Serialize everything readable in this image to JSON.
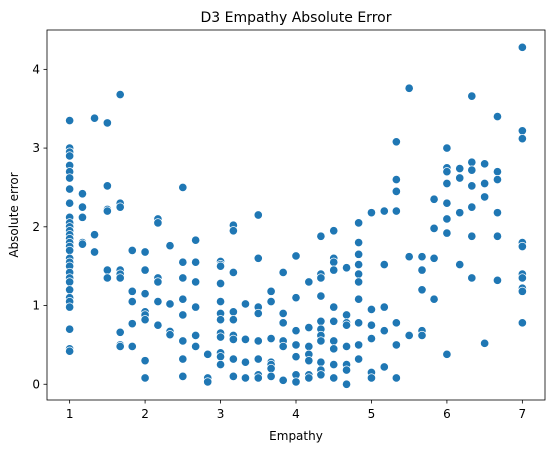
{
  "chart_data": {
    "type": "scatter",
    "title": "D3 Empathy Absolute Error",
    "xlabel": "Empathy",
    "ylabel": "Absolute error",
    "xlim": [
      0.7,
      7.3
    ],
    "ylim": [
      -0.2,
      4.5
    ],
    "xticks": [
      1,
      2,
      3,
      4,
      5,
      6,
      7
    ],
    "yticks": [
      0,
      1,
      2,
      3,
      4
    ],
    "grid": false,
    "legend": "none",
    "color": "#1f77b4",
    "points": [
      [
        1,
        3.35
      ],
      [
        1,
        3.0
      ],
      [
        1,
        2.95
      ],
      [
        1,
        2.9
      ],
      [
        1,
        2.78
      ],
      [
        1,
        2.7
      ],
      [
        1,
        2.62
      ],
      [
        1,
        2.48
      ],
      [
        1,
        2.3
      ],
      [
        1,
        2.12
      ],
      [
        1,
        2.05
      ],
      [
        1,
        2.0
      ],
      [
        1,
        1.95
      ],
      [
        1,
        1.9
      ],
      [
        1,
        1.85
      ],
      [
        1,
        1.8
      ],
      [
        1,
        1.75
      ],
      [
        1,
        1.7
      ],
      [
        1,
        1.6
      ],
      [
        1,
        1.55
      ],
      [
        1,
        1.5
      ],
      [
        1,
        1.42
      ],
      [
        1,
        1.35
      ],
      [
        1,
        1.3
      ],
      [
        1,
        1.2
      ],
      [
        1,
        1.1
      ],
      [
        1,
        1.05
      ],
      [
        1,
        0.98
      ],
      [
        1,
        0.7
      ],
      [
        1,
        0.45
      ],
      [
        1,
        0.42
      ],
      [
        1.17,
        2.42
      ],
      [
        1.17,
        2.25
      ],
      [
        1.17,
        2.12
      ],
      [
        1.17,
        1.8
      ],
      [
        1.17,
        1.78
      ],
      [
        1.33,
        3.38
      ],
      [
        1.33,
        1.9
      ],
      [
        1.33,
        1.68
      ],
      [
        1.5,
        3.32
      ],
      [
        1.5,
        2.52
      ],
      [
        1.5,
        2.22
      ],
      [
        1.5,
        2.2
      ],
      [
        1.5,
        1.45
      ],
      [
        1.5,
        1.35
      ],
      [
        1.67,
        3.68
      ],
      [
        1.67,
        2.3
      ],
      [
        1.67,
        2.25
      ],
      [
        1.67,
        1.45
      ],
      [
        1.67,
        1.4
      ],
      [
        1.67,
        1.35
      ],
      [
        1.67,
        0.66
      ],
      [
        1.67,
        0.5
      ],
      [
        1.67,
        0.48
      ],
      [
        1.83,
        1.7
      ],
      [
        1.83,
        1.18
      ],
      [
        1.83,
        1.05
      ],
      [
        1.83,
        0.77
      ],
      [
        1.83,
        0.48
      ],
      [
        2,
        1.68
      ],
      [
        2,
        1.45
      ],
      [
        2,
        1.15
      ],
      [
        2,
        0.92
      ],
      [
        2,
        0.88
      ],
      [
        2,
        0.82
      ],
      [
        2,
        0.3
      ],
      [
        2,
        0.08
      ],
      [
        2.17,
        2.1
      ],
      [
        2.17,
        2.05
      ],
      [
        2.17,
        1.35
      ],
      [
        2.17,
        1.3
      ],
      [
        2.17,
        1.05
      ],
      [
        2.17,
        0.75
      ],
      [
        2.33,
        1.76
      ],
      [
        2.33,
        1.02
      ],
      [
        2.33,
        0.67
      ],
      [
        2.33,
        0.63
      ],
      [
        2.5,
        2.5
      ],
      [
        2.5,
        1.55
      ],
      [
        2.5,
        1.35
      ],
      [
        2.5,
        1.08
      ],
      [
        2.5,
        0.88
      ],
      [
        2.5,
        0.55
      ],
      [
        2.5,
        0.32
      ],
      [
        2.5,
        0.1
      ],
      [
        2.67,
        1.83
      ],
      [
        2.67,
        1.55
      ],
      [
        2.67,
        1.3
      ],
      [
        2.67,
        0.98
      ],
      [
        2.67,
        0.62
      ],
      [
        2.67,
        0.48
      ],
      [
        2.83,
        0.38
      ],
      [
        2.83,
        0.08
      ],
      [
        2.83,
        0.03
      ],
      [
        3,
        1.56
      ],
      [
        3,
        1.52
      ],
      [
        3,
        1.5
      ],
      [
        3,
        1.28
      ],
      [
        3,
        1.05
      ],
      [
        3,
        0.9
      ],
      [
        3,
        0.82
      ],
      [
        3,
        0.65
      ],
      [
        3,
        0.6
      ],
      [
        3,
        0.4
      ],
      [
        3,
        0.35
      ],
      [
        3,
        0.25
      ],
      [
        3.17,
        2.02
      ],
      [
        3.17,
        1.95
      ],
      [
        3.17,
        1.42
      ],
      [
        3.17,
        0.92
      ],
      [
        3.17,
        0.82
      ],
      [
        3.17,
        0.62
      ],
      [
        3.17,
        0.57
      ],
      [
        3.17,
        0.32
      ],
      [
        3.17,
        0.1
      ],
      [
        3.33,
        1.02
      ],
      [
        3.33,
        0.57
      ],
      [
        3.33,
        0.28
      ],
      [
        3.33,
        0.08
      ],
      [
        3.5,
        2.15
      ],
      [
        3.5,
        1.6
      ],
      [
        3.5,
        0.98
      ],
      [
        3.5,
        0.9
      ],
      [
        3.5,
        0.55
      ],
      [
        3.5,
        0.32
      ],
      [
        3.5,
        0.12
      ],
      [
        3.5,
        0.08
      ],
      [
        3.67,
        1.18
      ],
      [
        3.67,
        1.05
      ],
      [
        3.67,
        0.58
      ],
      [
        3.67,
        0.28
      ],
      [
        3.67,
        0.25
      ],
      [
        3.67,
        0.2
      ],
      [
        3.67,
        0.1
      ],
      [
        3.83,
        1.42
      ],
      [
        3.83,
        0.9
      ],
      [
        3.83,
        0.78
      ],
      [
        3.83,
        0.55
      ],
      [
        3.83,
        0.48
      ],
      [
        3.83,
        0.05
      ],
      [
        4,
        1.63
      ],
      [
        4,
        1.1
      ],
      [
        4,
        0.68
      ],
      [
        4,
        0.5
      ],
      [
        4,
        0.35
      ],
      [
        4,
        0.12
      ],
      [
        4,
        0.03
      ],
      [
        4.17,
        1.3
      ],
      [
        4.17,
        0.72
      ],
      [
        4.17,
        0.48
      ],
      [
        4.17,
        0.38
      ],
      [
        4.17,
        0.3
      ],
      [
        4.17,
        0.12
      ],
      [
        4.17,
        0.08
      ],
      [
        4.33,
        1.88
      ],
      [
        4.33,
        1.4
      ],
      [
        4.33,
        1.35
      ],
      [
        4.33,
        1.12
      ],
      [
        4.33,
        0.8
      ],
      [
        4.33,
        0.7
      ],
      [
        4.33,
        0.62
      ],
      [
        4.33,
        0.55
      ],
      [
        4.33,
        0.28
      ],
      [
        4.33,
        0.18
      ],
      [
        4.33,
        0.12
      ],
      [
        4.5,
        1.95
      ],
      [
        4.5,
        1.6
      ],
      [
        4.5,
        1.55
      ],
      [
        4.5,
        1.45
      ],
      [
        4.5,
        0.98
      ],
      [
        4.5,
        0.8
      ],
      [
        4.5,
        0.55
      ],
      [
        4.5,
        0.45
      ],
      [
        4.5,
        0.25
      ],
      [
        4.5,
        0.08
      ],
      [
        4.67,
        1.48
      ],
      [
        4.67,
        0.88
      ],
      [
        4.67,
        0.78
      ],
      [
        4.67,
        0.75
      ],
      [
        4.67,
        0.48
      ],
      [
        4.67,
        0.25
      ],
      [
        4.67,
        0.18
      ],
      [
        4.67,
        0.0
      ],
      [
        4.83,
        2.05
      ],
      [
        4.83,
        1.8
      ],
      [
        4.83,
        1.65
      ],
      [
        4.83,
        1.52
      ],
      [
        4.83,
        1.4
      ],
      [
        4.83,
        1.3
      ],
      [
        4.83,
        1.08
      ],
      [
        4.83,
        0.78
      ],
      [
        4.83,
        0.5
      ],
      [
        4.83,
        0.32
      ],
      [
        5,
        2.18
      ],
      [
        5,
        0.95
      ],
      [
        5,
        0.75
      ],
      [
        5,
        0.58
      ],
      [
        5,
        0.15
      ],
      [
        5,
        0.08
      ],
      [
        5.17,
        2.2
      ],
      [
        5.17,
        1.52
      ],
      [
        5.17,
        0.98
      ],
      [
        5.17,
        0.68
      ],
      [
        5.17,
        0.22
      ],
      [
        5.33,
        3.08
      ],
      [
        5.33,
        2.6
      ],
      [
        5.33,
        2.45
      ],
      [
        5.33,
        2.2
      ],
      [
        5.33,
        0.78
      ],
      [
        5.33,
        0.5
      ],
      [
        5.33,
        0.08
      ],
      [
        5.5,
        3.76
      ],
      [
        5.5,
        1.62
      ],
      [
        5.5,
        0.62
      ],
      [
        5.67,
        1.62
      ],
      [
        5.67,
        1.45
      ],
      [
        5.67,
        1.2
      ],
      [
        5.67,
        0.68
      ],
      [
        5.67,
        0.62
      ],
      [
        5.83,
        2.35
      ],
      [
        5.83,
        1.98
      ],
      [
        5.83,
        1.6
      ],
      [
        5.83,
        1.08
      ],
      [
        6,
        3.0
      ],
      [
        6,
        2.75
      ],
      [
        6,
        2.7
      ],
      [
        6,
        2.55
      ],
      [
        6,
        2.3
      ],
      [
        6,
        2.1
      ],
      [
        6,
        1.92
      ],
      [
        6,
        0.38
      ],
      [
        6.17,
        2.74
      ],
      [
        6.17,
        2.62
      ],
      [
        6.17,
        2.18
      ],
      [
        6.17,
        1.52
      ],
      [
        6.33,
        3.66
      ],
      [
        6.33,
        2.82
      ],
      [
        6.33,
        2.72
      ],
      [
        6.33,
        2.52
      ],
      [
        6.33,
        2.25
      ],
      [
        6.33,
        1.88
      ],
      [
        6.33,
        1.35
      ],
      [
        6.5,
        2.8
      ],
      [
        6.5,
        2.55
      ],
      [
        6.5,
        2.38
      ],
      [
        6.5,
        0.52
      ],
      [
        6.67,
        3.4
      ],
      [
        6.67,
        2.7
      ],
      [
        6.67,
        2.6
      ],
      [
        6.67,
        2.18
      ],
      [
        6.67,
        1.88
      ],
      [
        6.67,
        1.32
      ],
      [
        7,
        4.28
      ],
      [
        7,
        3.22
      ],
      [
        7,
        3.12
      ],
      [
        7,
        1.8
      ],
      [
        7,
        1.75
      ],
      [
        7,
        1.4
      ],
      [
        7,
        1.35
      ],
      [
        7,
        1.22
      ],
      [
        7,
        1.18
      ],
      [
        7,
        0.78
      ]
    ]
  }
}
